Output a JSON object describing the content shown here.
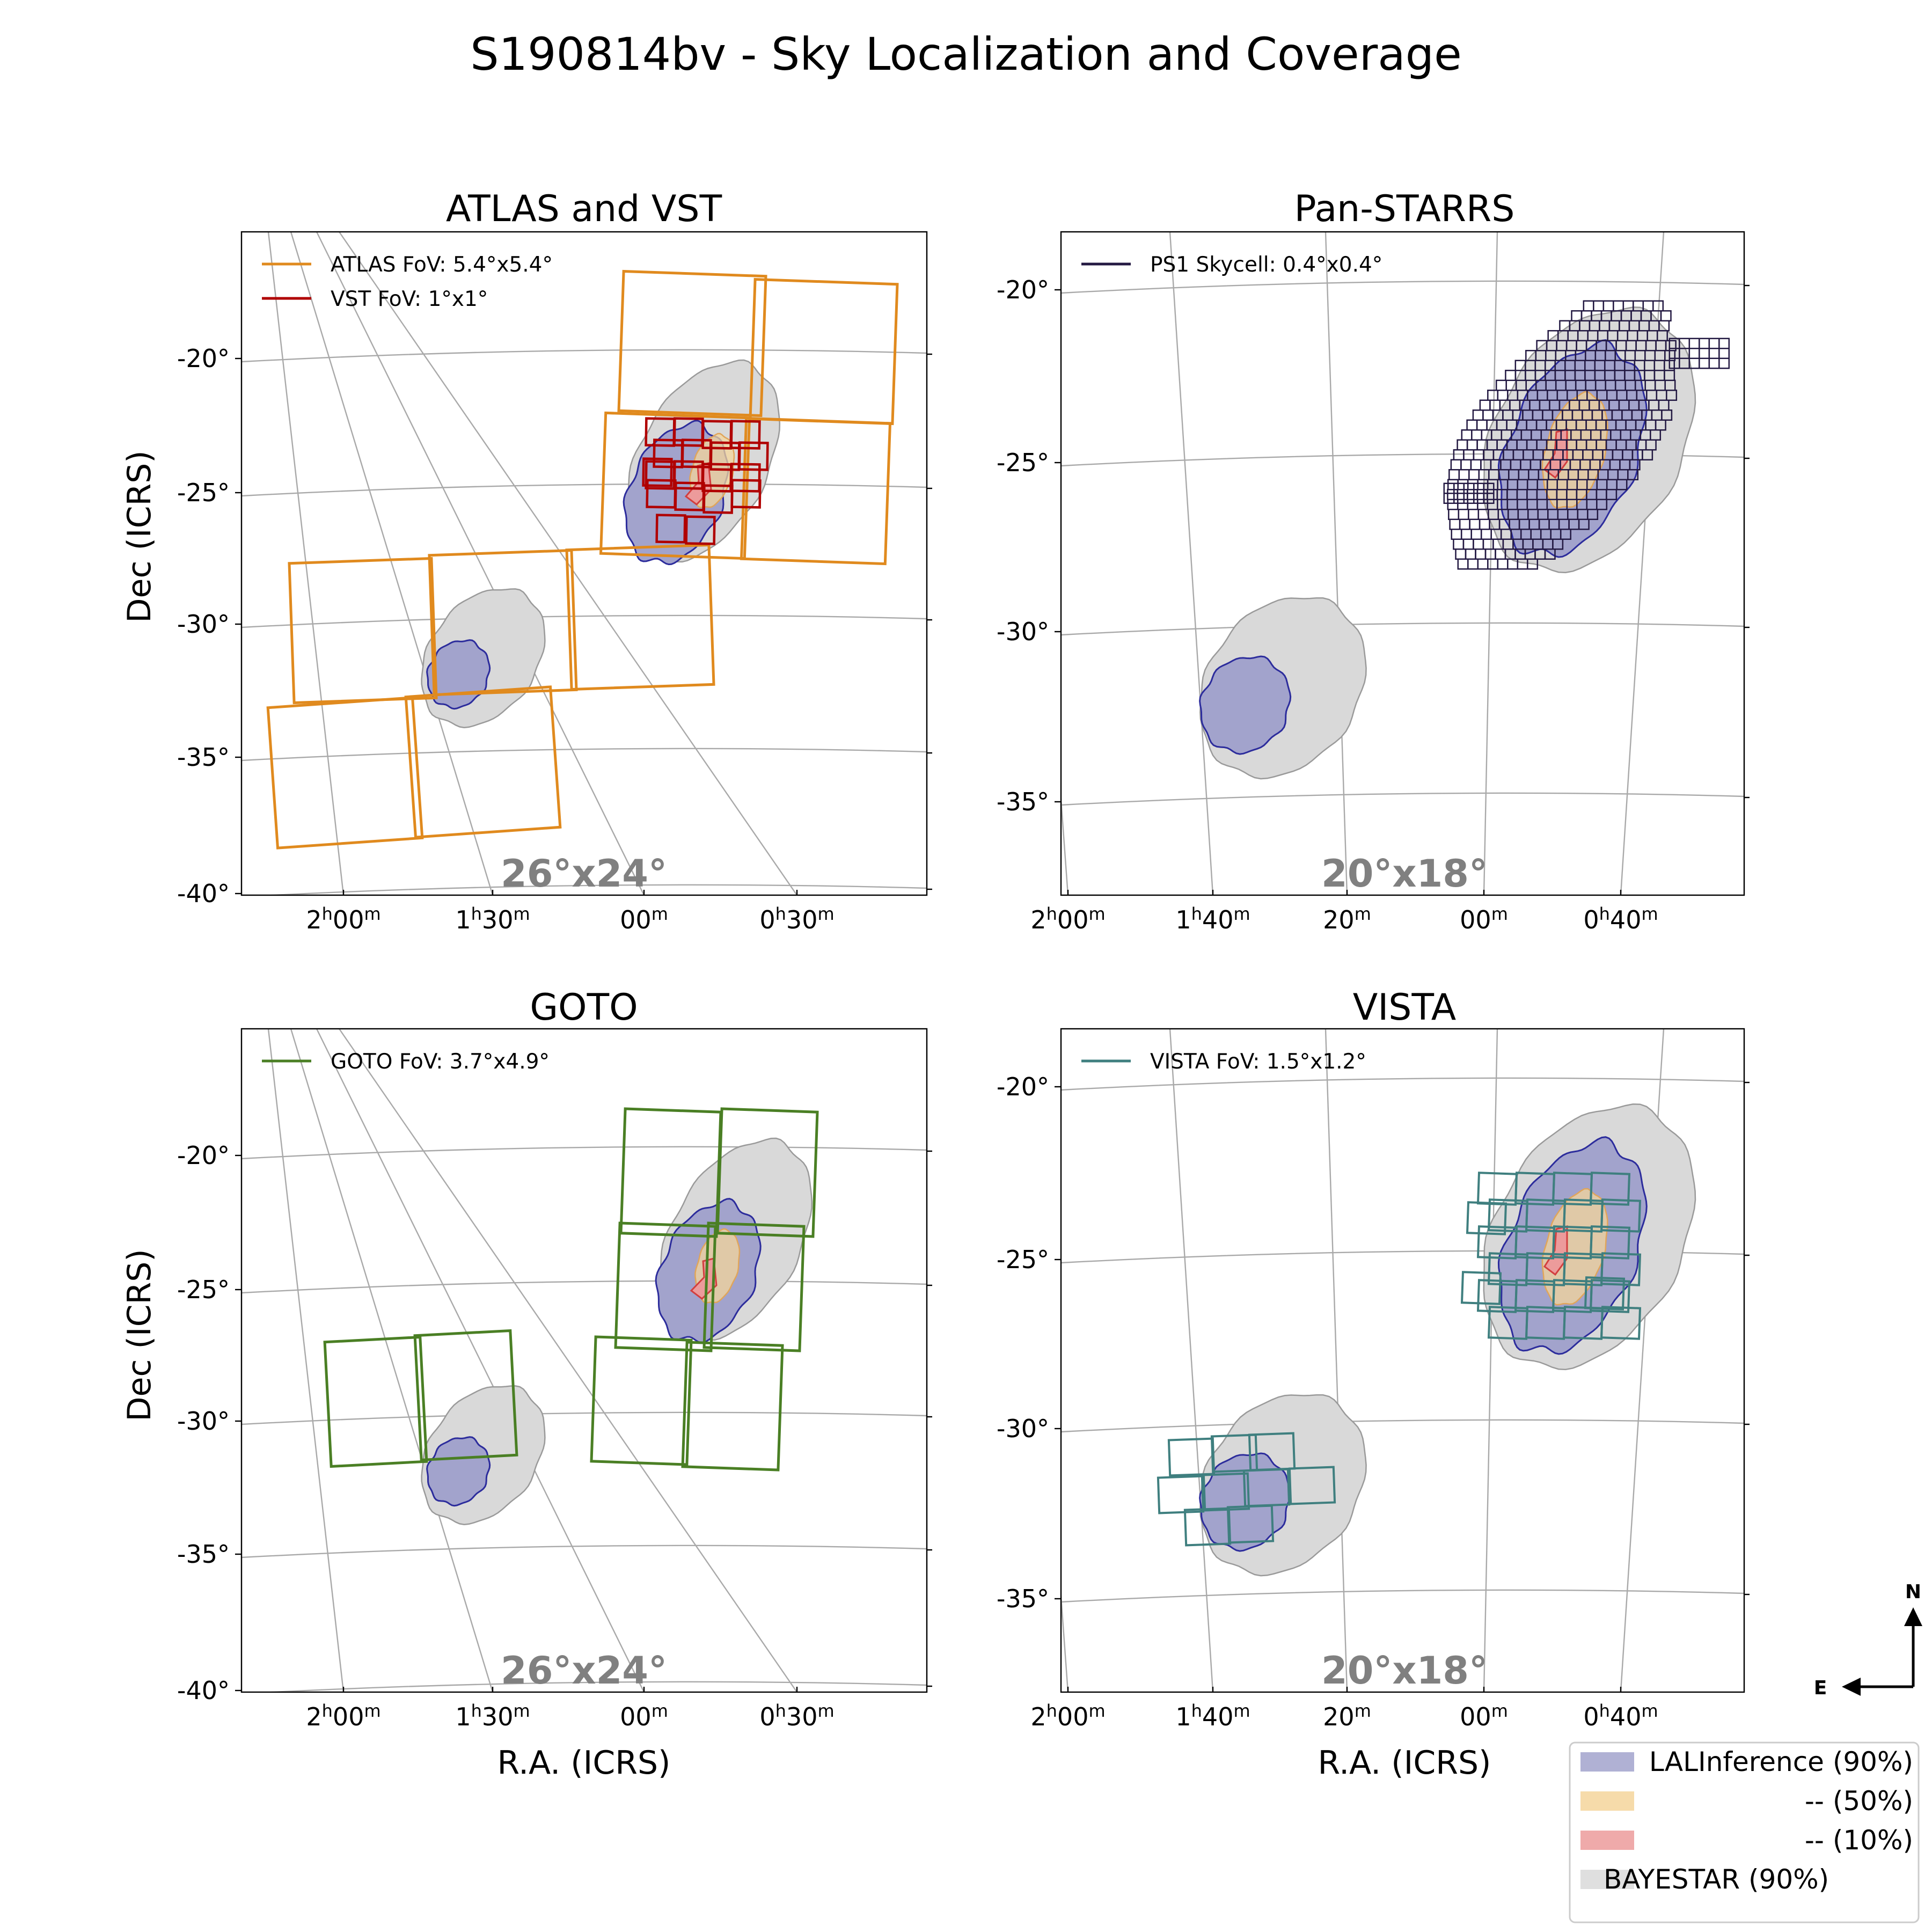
{
  "figure_title": "S190814bv - Sky Localization and Coverage",
  "x_axis_label": "R.A. (ICRS)",
  "y_axis_label": "Dec (ICRS)",
  "colors": {
    "lal90": "#a2a3cc",
    "lal90_edge": "#2c2c9c",
    "lal50": "#f4d59b",
    "lal50_edge": "#e0a55a",
    "lal10": "#ec9b9b",
    "lal10_edge": "#d23f3f",
    "bayestar": "#d9d9d9",
    "bayestar_edge": "#9a9a9a",
    "atlas": "#e08a1e",
    "vst": "#b00000",
    "ps1": "#231942",
    "goto": "#4a7f24",
    "vista": "#3f7f7f",
    "fov_text": "#808080"
  },
  "compass": {
    "north": "N",
    "east": "E"
  },
  "bottom_legend": {
    "items": [
      {
        "label": "LALInference (90%)",
        "color": "#a2a3cc"
      },
      {
        "label": "--      (50%)",
        "color": "#f4d59b"
      },
      {
        "label": "--      (10%)",
        "color": "#ec9b9b"
      },
      {
        "label": "BAYESTAR (90%)",
        "color": "#d9d9d9"
      }
    ]
  },
  "chart_data": [
    {
      "type": "scatter",
      "title": "ATLAS and VST",
      "field_label": "26°x24°",
      "xlabel": "",
      "ylabel": "Dec (ICRS)",
      "x_ticks": [
        "2h00m",
        "1h30m",
        "00m",
        "0h30m"
      ],
      "y_ticks": [
        "-20°",
        "-25°",
        "-30°",
        "-35°",
        "-40°"
      ],
      "legend": {
        "placement": "upper-left",
        "entries": [
          {
            "label": "ATLAS FoV: 5.4°x5.4°",
            "color": "#e08a1e"
          },
          {
            "label": "VST FoV: 1°x1°",
            "color": "#b00000"
          }
        ]
      },
      "grid": true
    },
    {
      "type": "scatter",
      "title": "Pan-STARRS",
      "field_label": "20°x18°",
      "xlabel": "",
      "ylabel": "",
      "x_ticks": [
        "2h00m",
        "1h40m",
        "20m",
        "00m",
        "0h40m"
      ],
      "y_ticks": [
        "-20°",
        "-25°",
        "-30°",
        "-35°"
      ],
      "legend": {
        "placement": "upper-left",
        "entries": [
          {
            "label": "PS1 Skycell: 0.4°x0.4°",
            "color": "#231942"
          }
        ]
      },
      "grid": true
    },
    {
      "type": "scatter",
      "title": "GOTO",
      "field_label": "26°x24°",
      "xlabel": "R.A. (ICRS)",
      "ylabel": "Dec (ICRS)",
      "x_ticks": [
        "2h00m",
        "1h30m",
        "00m",
        "0h30m"
      ],
      "y_ticks": [
        "-20°",
        "-25°",
        "-30°",
        "-35°",
        "-40°"
      ],
      "legend": {
        "placement": "upper-left",
        "entries": [
          {
            "label": "GOTO FoV:  3.7°x4.9°",
            "color": "#4a7f24"
          }
        ]
      },
      "grid": true
    },
    {
      "type": "scatter",
      "title": "VISTA",
      "field_label": "20°x18°",
      "xlabel": "R.A. (ICRS)",
      "ylabel": "",
      "x_ticks": [
        "2h00m",
        "1h40m",
        "20m",
        "00m",
        "0h40m"
      ],
      "y_ticks": [
        "-20°",
        "-25°",
        "-30°",
        "-35°"
      ],
      "legend": {
        "placement": "upper-left",
        "entries": [
          {
            "label": "VISTA FoV: 1.5°x1.2°",
            "color": "#3f7f7f"
          }
        ]
      },
      "grid": true
    }
  ]
}
